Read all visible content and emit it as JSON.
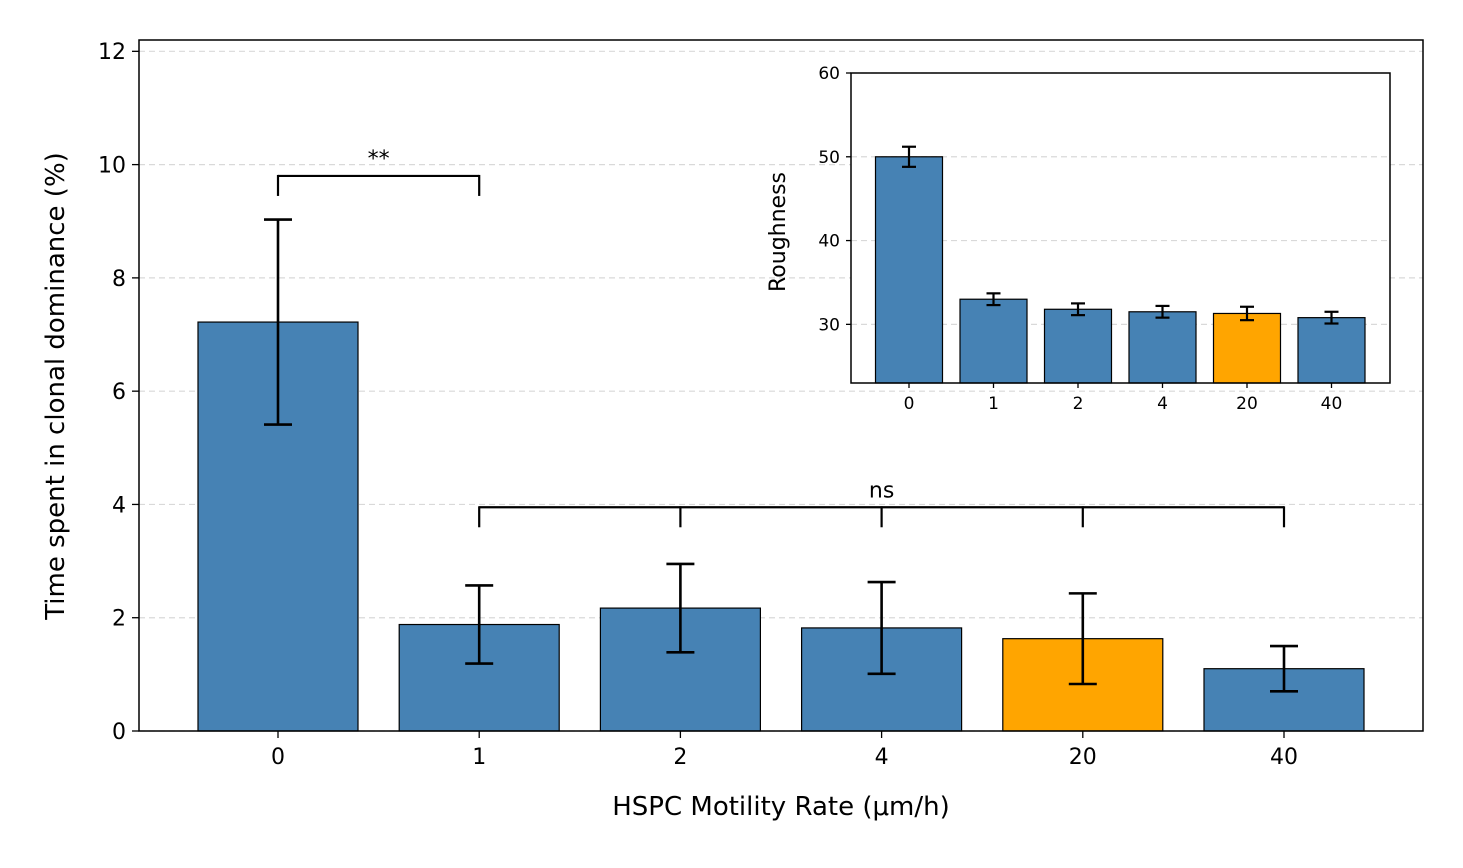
{
  "colors": {
    "default": "#4682b4",
    "highlight": "#ffa500",
    "grid": "#d9d9d9"
  },
  "chart_data": [
    {
      "id": "main",
      "type": "bar",
      "title": "",
      "xlabel": "HSPC Motility Rate (μm/h)",
      "ylabel": "Time spent in clonal dominance (%)",
      "categories": [
        "0",
        "1",
        "2",
        "4",
        "20",
        "40"
      ],
      "values": [
        7.22,
        1.88,
        2.17,
        1.82,
        1.63,
        1.1
      ],
      "errors": [
        1.81,
        0.69,
        0.78,
        0.81,
        0.8,
        0.4
      ],
      "highlight_category": "20",
      "ylim": [
        0,
        12.2
      ],
      "yticks": [
        0,
        2,
        4,
        6,
        8,
        10,
        12
      ],
      "grid": "horizontal dashed",
      "annotations": [
        {
          "label": "**",
          "from": "0",
          "to": "1",
          "y": 9.8
        },
        {
          "label": "ns",
          "from": "1",
          "to": "40",
          "y": 3.95,
          "ticks_at": [
            "1",
            "2",
            "4",
            "20",
            "40"
          ]
        }
      ]
    },
    {
      "id": "inset",
      "type": "bar",
      "title": "",
      "xlabel": "",
      "ylabel": "Roughness",
      "categories": [
        "0",
        "1",
        "2",
        "4",
        "20",
        "40"
      ],
      "values": [
        50.0,
        33.0,
        31.8,
        31.5,
        31.3,
        30.8
      ],
      "errors": [
        1.2,
        0.7,
        0.7,
        0.7,
        0.8,
        0.7
      ],
      "highlight_category": "20",
      "ylim": [
        23,
        60
      ],
      "yticks": [
        30,
        40,
        50,
        60
      ],
      "grid": "horizontal dashed"
    }
  ]
}
